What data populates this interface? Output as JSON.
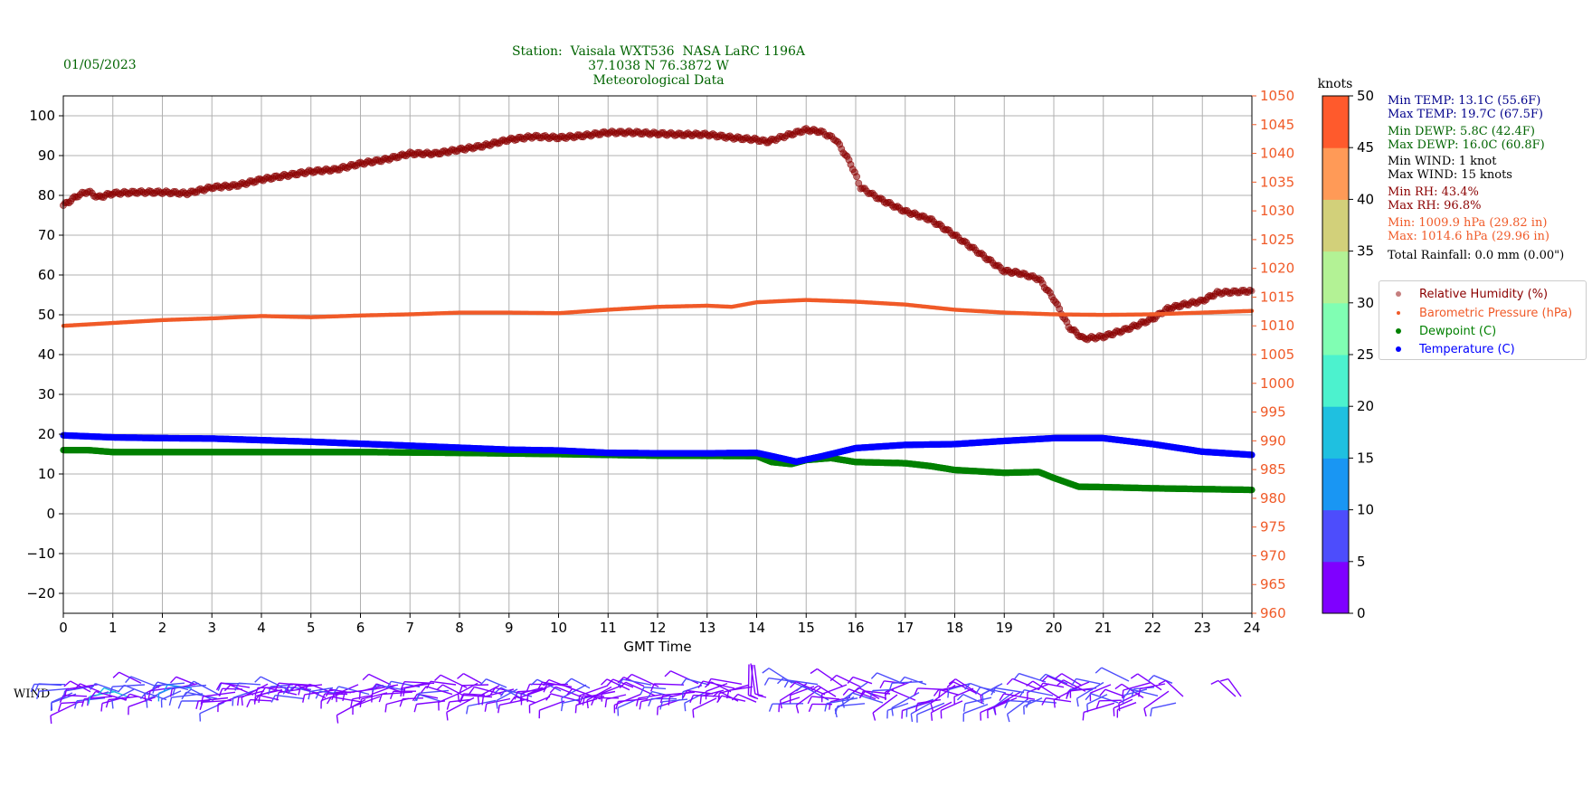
{
  "header": {
    "date": "01/05/2023",
    "station": "Station:  Vaisala WXT536  NASA LaRC 1196A",
    "coords": "37.1038 N 76.3872 W",
    "subtitle": "Meteorological Data"
  },
  "stats": {
    "min_temp": "Min TEMP: 13.1C (55.6F)",
    "max_temp": "Max TEMP: 19.7C (67.5F)",
    "min_dewp": "Min DEWP: 5.8C (42.4F)",
    "max_dewp": "Max DEWP: 16.0C (60.8F)",
    "min_wind": "Min WIND: 1 knot",
    "max_wind": "Max WIND: 15 knots",
    "min_rh": "Min RH: 43.4%",
    "max_rh": "Max RH: 96.8%",
    "min_pres": "Min: 1009.9 hPa (29.82 in)",
    "max_pres": "Max: 1014.6 hPa (29.96 in)",
    "rain": "Total Rainfall: 0.0 mm (0.00\")"
  },
  "colors": {
    "rh": "#8b0000",
    "pressure": "#f05a28",
    "dewpoint": "#008000",
    "temperature": "#0000ff",
    "header_text": "#006400",
    "temp_stats": "#00008b",
    "dewp_stats": "#006400",
    "wind_stats": "#000000"
  },
  "wind_label": "WIND",
  "colorbar": {
    "unit": "knots",
    "ticks": [
      "0",
      "5",
      "10",
      "15",
      "20",
      "25",
      "30",
      "35",
      "40",
      "45",
      "50"
    ],
    "colors": [
      "#7f00ff",
      "#4d4dfc",
      "#1996f3",
      "#1fc0e0",
      "#4cf2ce",
      "#80feb3",
      "#b3f295",
      "#d2d07a",
      "#ff9a57",
      "#ff5a2c",
      "#ff0000"
    ]
  },
  "chart_data": {
    "type": "scatter",
    "xlabel": "GMT Time",
    "x_ticks": [
      "0",
      "1",
      "2",
      "3",
      "4",
      "5",
      "6",
      "7",
      "8",
      "9",
      "10",
      "11",
      "12",
      "13",
      "14",
      "15",
      "16",
      "17",
      "18",
      "19",
      "20",
      "21",
      "22",
      "23",
      "24"
    ],
    "xlim": [
      0,
      24
    ],
    "ylim_left": [
      -25,
      105
    ],
    "ylim_right": [
      960,
      1050
    ],
    "left_ticks": [
      "−20",
      "−10",
      "0",
      "10",
      "20",
      "30",
      "40",
      "50",
      "60",
      "70",
      "80",
      "90",
      "100"
    ],
    "right_ticks": [
      "960",
      "965",
      "970",
      "975",
      "980",
      "985",
      "990",
      "995",
      "1000",
      "1005",
      "1010",
      "1015",
      "1020",
      "1025",
      "1030",
      "1035",
      "1040",
      "1045",
      "1050"
    ],
    "grid": true,
    "legend_position": "right",
    "series": [
      {
        "name": "Relative Humidity (%)",
        "axis": "left",
        "points": [
          [
            0,
            77.5
          ],
          [
            0.3,
            80
          ],
          [
            0.5,
            81
          ],
          [
            0.7,
            79.5
          ],
          [
            1,
            80.5
          ],
          [
            1.5,
            80.8
          ],
          [
            2,
            80.8
          ],
          [
            2.5,
            80.5
          ],
          [
            3,
            82
          ],
          [
            3.5,
            82.5
          ],
          [
            4,
            84
          ],
          [
            4.5,
            85
          ],
          [
            5,
            86
          ],
          [
            5.5,
            86.5
          ],
          [
            6,
            88
          ],
          [
            6.5,
            89
          ],
          [
            7,
            90.5
          ],
          [
            7.5,
            90.5
          ],
          [
            8,
            91.5
          ],
          [
            8.5,
            92.5
          ],
          [
            9,
            94
          ],
          [
            9.5,
            94.8
          ],
          [
            10,
            94.5
          ],
          [
            10.5,
            95
          ],
          [
            11,
            95.8
          ],
          [
            11.5,
            95.8
          ],
          [
            12,
            95.5
          ],
          [
            12.5,
            95.3
          ],
          [
            13,
            95.3
          ],
          [
            13.5,
            94.5
          ],
          [
            14,
            94
          ],
          [
            14.2,
            93.5
          ],
          [
            14.3,
            93.8
          ],
          [
            14.6,
            95
          ],
          [
            15,
            96.5
          ],
          [
            15.3,
            96
          ],
          [
            15.6,
            94
          ],
          [
            15.9,
            88
          ],
          [
            16.1,
            82
          ],
          [
            16.5,
            79
          ],
          [
            17,
            76
          ],
          [
            17.5,
            74
          ],
          [
            18,
            70
          ],
          [
            18.5,
            65.5
          ],
          [
            19,
            61
          ],
          [
            19.3,
            60.5
          ],
          [
            19.7,
            59
          ],
          [
            20,
            54
          ],
          [
            20.3,
            47
          ],
          [
            20.6,
            44
          ],
          [
            21,
            44.5
          ],
          [
            21.5,
            46.5
          ],
          [
            22,
            49
          ],
          [
            22.3,
            51.5
          ],
          [
            22.6,
            52.5
          ],
          [
            23,
            53.5
          ],
          [
            23.3,
            55.5
          ],
          [
            24,
            56
          ]
        ]
      },
      {
        "name": "Barometric Pressure (hPa)",
        "axis": "right",
        "points": [
          [
            0,
            1010.0
          ],
          [
            1,
            1010.5
          ],
          [
            2,
            1011
          ],
          [
            3,
            1011.3
          ],
          [
            4,
            1011.7
          ],
          [
            5,
            1011.5
          ],
          [
            6,
            1011.8
          ],
          [
            7,
            1012
          ],
          [
            8,
            1012.3
          ],
          [
            9,
            1012.3
          ],
          [
            10,
            1012.2
          ],
          [
            11,
            1012.8
          ],
          [
            12,
            1013.3
          ],
          [
            13,
            1013.5
          ],
          [
            13.5,
            1013.3
          ],
          [
            14,
            1014.1
          ],
          [
            15,
            1014.5
          ],
          [
            16,
            1014.2
          ],
          [
            17,
            1013.7
          ],
          [
            18,
            1012.8
          ],
          [
            19,
            1012.3
          ],
          [
            20,
            1012
          ],
          [
            21,
            1011.9
          ],
          [
            22,
            1012
          ],
          [
            23,
            1012.3
          ],
          [
            24,
            1012.6
          ]
        ]
      },
      {
        "name": "Dewpoint (C)",
        "axis": "left",
        "points": [
          [
            0,
            16
          ],
          [
            0.5,
            16
          ],
          [
            1,
            15.5
          ],
          [
            2,
            15.5
          ],
          [
            4,
            15.5
          ],
          [
            6,
            15.5
          ],
          [
            8,
            15.3
          ],
          [
            10,
            15
          ],
          [
            12,
            14.6
          ],
          [
            14,
            14.5
          ],
          [
            14.3,
            13
          ],
          [
            14.7,
            12.5
          ],
          [
            15,
            13.5
          ],
          [
            15.5,
            14
          ],
          [
            16,
            13
          ],
          [
            17,
            12.7
          ],
          [
            17.5,
            12
          ],
          [
            18,
            11
          ],
          [
            19,
            10.3
          ],
          [
            19.7,
            10.5
          ],
          [
            20,
            9
          ],
          [
            20.5,
            6.8
          ],
          [
            21,
            6.7
          ],
          [
            22,
            6.4
          ],
          [
            23,
            6.2
          ],
          [
            24,
            6
          ]
        ]
      },
      {
        "name": "Temperature (C)",
        "axis": "left",
        "points": [
          [
            0,
            19.7
          ],
          [
            1,
            19.2
          ],
          [
            2,
            19
          ],
          [
            3,
            18.9
          ],
          [
            4,
            18.5
          ],
          [
            5,
            18.1
          ],
          [
            6,
            17.6
          ],
          [
            7,
            17.1
          ],
          [
            8,
            16.6
          ],
          [
            9,
            16.1
          ],
          [
            10,
            15.9
          ],
          [
            11,
            15.3
          ],
          [
            12,
            15.2
          ],
          [
            13,
            15.2
          ],
          [
            14,
            15.3
          ],
          [
            14.3,
            14.5
          ],
          [
            14.8,
            13.1
          ],
          [
            15.3,
            14.4
          ],
          [
            16,
            16.5
          ],
          [
            17,
            17.3
          ],
          [
            18,
            17.5
          ],
          [
            19,
            18.3
          ],
          [
            20,
            19
          ],
          [
            21,
            19
          ],
          [
            22,
            17.5
          ],
          [
            23,
            15.6
          ],
          [
            24,
            14.8
          ]
        ]
      }
    ]
  }
}
